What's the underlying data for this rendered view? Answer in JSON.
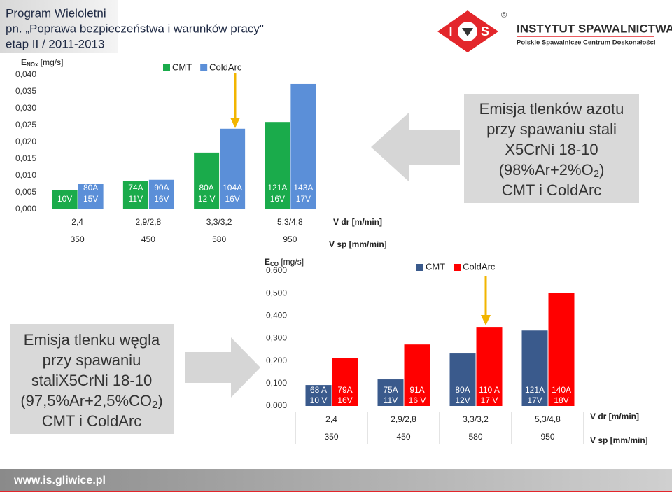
{
  "header": {
    "lines": [
      "Program Wieloletni",
      "pn. „Poprawa bezpieczeństwa i warunków pracy\"",
      "etap II  / 2011-2013"
    ]
  },
  "logo": {
    "letters": [
      "I",
      "S"
    ],
    "registered": "®",
    "name": "INSTYTUT SPAWALNICTWA",
    "subtitle": "Polskie Spawalnicze Centrum Doskonałości"
  },
  "notes": [
    {
      "lines": [
        "Emisja tlenków azotu",
        "przy spawaniu stali",
        "X5CrNi 18-10"
      ],
      "formula": [
        "(98%Ar+2%O",
        "2",
        ")"
      ],
      "last": "CMT i ColdArc"
    },
    {
      "lines": [
        "Emisja tlenku węgla",
        "przy spawaniu",
        "staliX5CrNi 18-10"
      ],
      "formula": [
        "(97,5%Ar+2,5%CO",
        "2",
        ")"
      ],
      "last": "CMT i ColdArc"
    }
  ],
  "footer": {
    "url": "www.is.gliwice.pl"
  },
  "chart_data": [
    {
      "type": "bar",
      "y_label": {
        "symbol": "E",
        "subscript": "NOx",
        "unit": " [mg/s]"
      },
      "categories": [
        "2,4",
        "2,9/2,8",
        "3,3/3,2",
        "5,3/4,8"
      ],
      "categories2": [
        "350",
        "450",
        "580",
        "950"
      ],
      "x_label": "V dr [m/min]",
      "x_label2": "V sp [mm/min]",
      "ylim": [
        0,
        0.04
      ],
      "yticks": [
        {
          "value": 0,
          "label": "0,000"
        },
        {
          "value": 0.005,
          "label": "0,005"
        },
        {
          "value": 0.01,
          "label": "0,010"
        },
        {
          "value": 0.015,
          "label": "0,015"
        },
        {
          "value": 0.02,
          "label": "0,020"
        },
        {
          "value": 0.025,
          "label": "0,025"
        },
        {
          "value": 0.03,
          "label": "0,030"
        },
        {
          "value": 0.035,
          "label": "0,035"
        },
        {
          "value": 0.04,
          "label": "0,040"
        }
      ],
      "series": [
        {
          "name": "CMT",
          "color": "#1aab4b",
          "values": [
            0.0058,
            0.0085,
            0.0169,
            0.026
          ],
          "bar_labels": [
            [
              "68A",
              "10V"
            ],
            [
              "74A",
              "11V"
            ],
            [
              "80A",
              "12 V"
            ],
            [
              "121A",
              "16V"
            ]
          ]
        },
        {
          "name": "ColdArc",
          "color": "#5b8fd8",
          "values": [
            0.0075,
            0.0088,
            0.024,
            0.0373
          ],
          "bar_labels": [
            [
              "80A",
              "15V"
            ],
            [
              "90A",
              "16V"
            ],
            [
              "104A",
              "16V"
            ],
            [
              "143A",
              "17V"
            ]
          ]
        }
      ]
    },
    {
      "type": "bar",
      "y_label": {
        "symbol": "E",
        "subscript": "CO",
        "unit": " [mg/s]"
      },
      "categories": [
        "2,4",
        "2,9/2,8",
        "3,3/3,2",
        "5,3/4,8"
      ],
      "categories2": [
        "350",
        "450",
        "580",
        "950"
      ],
      "x_label": "V dr [m/min]",
      "x_label2": "V sp [mm/min]",
      "ylim": [
        0,
        0.6
      ],
      "yticks": [
        {
          "value": 0,
          "label": "0,000"
        },
        {
          "value": 0.1,
          "label": "0,100"
        },
        {
          "value": 0.2,
          "label": "0,200"
        },
        {
          "value": 0.3,
          "label": "0,300"
        },
        {
          "value": 0.4,
          "label": "0,400"
        },
        {
          "value": 0.5,
          "label": "0,500"
        },
        {
          "value": 0.6,
          "label": "0,600"
        }
      ],
      "series": [
        {
          "name": "CMT",
          "color": "#3a5a8c",
          "values": [
            0.093,
            0.118,
            0.233,
            0.335
          ],
          "bar_labels": [
            [
              "68 A",
              "10 V"
            ],
            [
              "75A",
              "11V"
            ],
            [
              "80A",
              "12V"
            ],
            [
              "121A",
              "17V"
            ]
          ]
        },
        {
          "name": "ColdArc",
          "color": "#ff0000",
          "values": [
            0.214,
            0.273,
            0.351,
            0.503
          ],
          "bar_labels": [
            [
              "79A",
              "16V"
            ],
            [
              "91A",
              "16 V"
            ],
            [
              "110 A",
              "17 V"
            ],
            [
              "140A",
              "18V"
            ]
          ]
        }
      ]
    }
  ]
}
